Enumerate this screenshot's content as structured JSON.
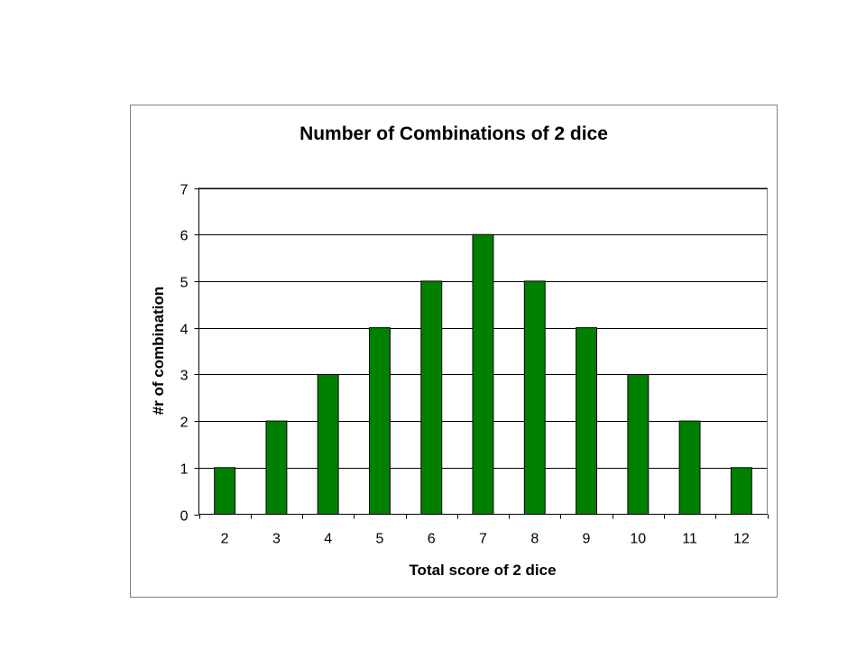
{
  "chart_data": {
    "type": "bar",
    "title": "Number of Combinations of 2 dice",
    "xlabel": "Total score of 2 dice",
    "ylabel": "#r of combination",
    "categories": [
      "2",
      "3",
      "4",
      "5",
      "6",
      "7",
      "8",
      "9",
      "10",
      "11",
      "12"
    ],
    "values": [
      1,
      2,
      3,
      4,
      5,
      6,
      5,
      4,
      3,
      2,
      1
    ],
    "ylim": [
      0,
      7
    ],
    "yticks": [
      0,
      1,
      2,
      3,
      4,
      5,
      6,
      7
    ],
    "grid": true,
    "legend": "none",
    "colors": {
      "bar": "#008000",
      "grid": "#000000",
      "frame": "#808080"
    }
  }
}
